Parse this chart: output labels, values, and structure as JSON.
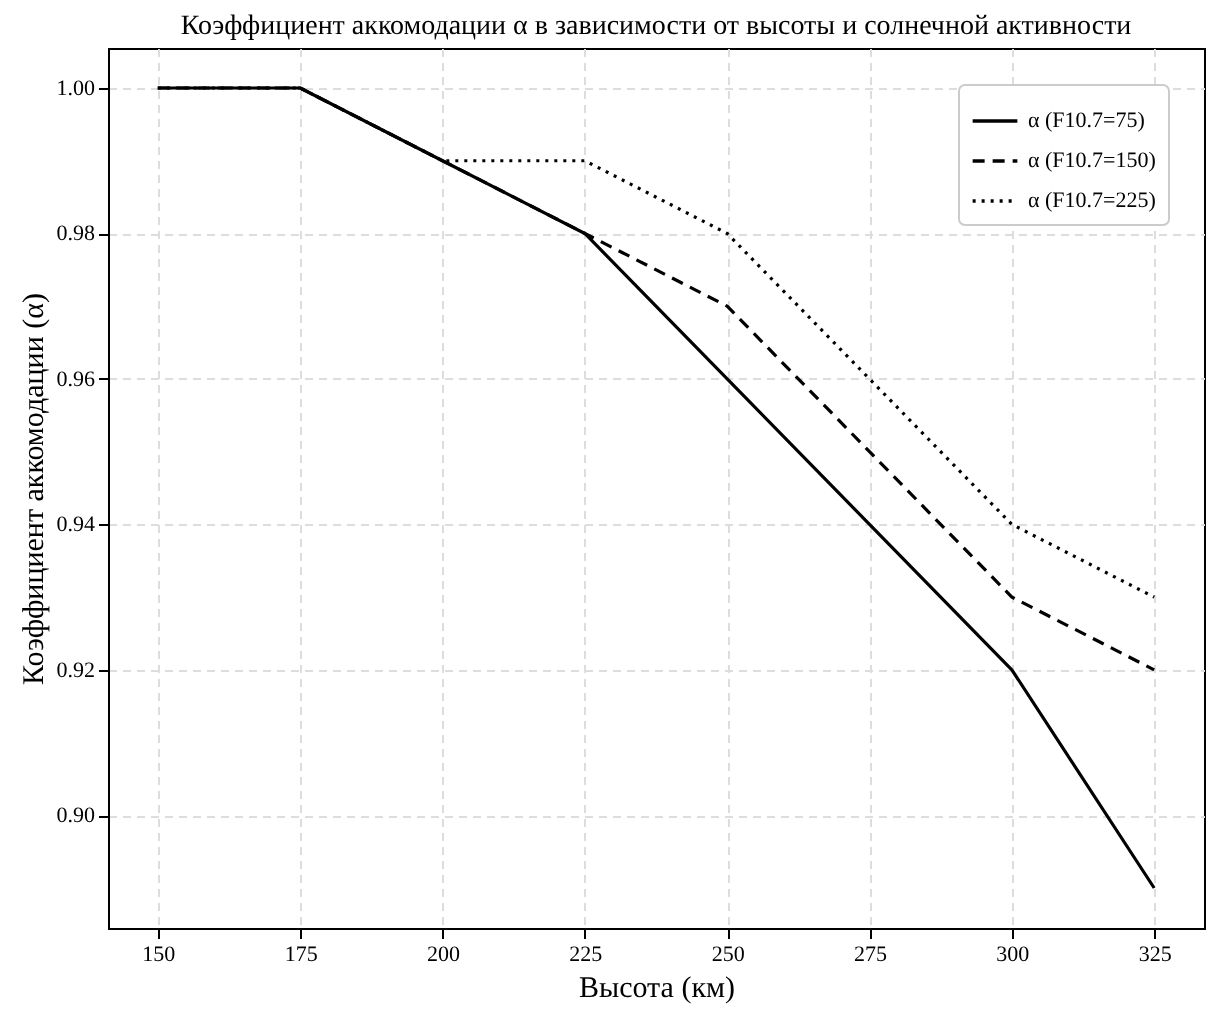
{
  "chart_data": {
    "type": "line",
    "title": "Коэффициент аккомодации α в зависимости от высоты и солнечной активности",
    "xlabel": "Высота (км)",
    "ylabel": "Коэффициент аккомодации (α)",
    "x": [
      150,
      175,
      200,
      225,
      250,
      275,
      300,
      325
    ],
    "series": [
      {
        "name": "α (F10.7=75)",
        "color": "#000000",
        "line_style": "solid",
        "values": [
          1.0,
          1.0,
          0.99,
          0.98,
          0.96,
          0.94,
          0.92,
          0.89
        ]
      },
      {
        "name": "α (F10.7=150)",
        "color": "#000000",
        "line_style": "dashed",
        "values": [
          1.0,
          1.0,
          0.99,
          0.98,
          0.97,
          0.95,
          0.93,
          0.92
        ]
      },
      {
        "name": "α (F10.7=225)",
        "color": "#000000",
        "line_style": "dotted",
        "values": [
          1.0,
          1.0,
          0.99,
          0.99,
          0.98,
          0.96,
          0.94,
          0.93
        ]
      }
    ],
    "xlim": [
      141.25,
      333.75
    ],
    "xticks": [
      150,
      175,
      200,
      225,
      250,
      275,
      300,
      325
    ],
    "ylim": [
      0.8845,
      1.0055
    ],
    "yticks": [
      {
        "value": 0.9,
        "label": "0.90"
      },
      {
        "value": 0.92,
        "label": "0.92"
      },
      {
        "value": 0.94,
        "label": "0.94"
      },
      {
        "value": 0.96,
        "label": "0.96"
      },
      {
        "value": 0.98,
        "label": "0.98"
      },
      {
        "value": 1.0,
        "label": "1.00"
      }
    ],
    "grid": true,
    "legend": "top right",
    "marker": "none"
  }
}
